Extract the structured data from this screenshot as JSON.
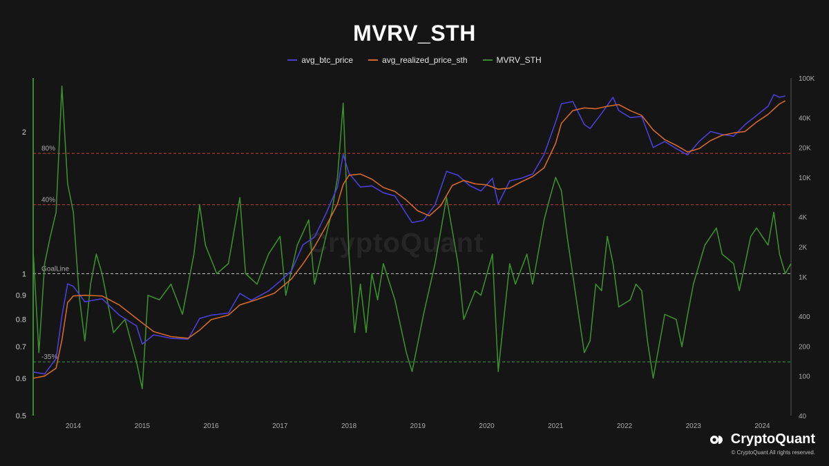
{
  "chart_data": {
    "type": "line",
    "title": "MVRV_STH",
    "legend_position": "top-center",
    "grid": false,
    "x_range": [
      "2013-06",
      "2024-06"
    ],
    "x_ticks": [
      "2014",
      "2015",
      "2016",
      "2017",
      "2018",
      "2019",
      "2020",
      "2021",
      "2022",
      "2023",
      "2024"
    ],
    "left_axis": {
      "scale": "log",
      "range": [
        0.5,
        2.6
      ],
      "ticks": [
        "0.5",
        "0.6",
        "0.7",
        "0.8",
        "0.9",
        "1",
        "2"
      ]
    },
    "right_axis": {
      "scale": "log",
      "range": [
        40,
        100000
      ],
      "ticks": [
        "40",
        "100",
        "200",
        "400",
        "1K",
        "2K",
        "4K",
        "10K",
        "20K",
        "40K",
        "100K"
      ]
    },
    "series": [
      {
        "name": "avg_btc_price",
        "color": "#4b3fd8",
        "axis": "right",
        "points": [
          [
            "2013-06",
            110
          ],
          [
            "2013-08",
            105
          ],
          [
            "2013-10",
            150
          ],
          [
            "2013-11",
            400
          ],
          [
            "2013-12",
            850
          ],
          [
            "2014-01",
            800
          ],
          [
            "2014-03",
            560
          ],
          [
            "2014-06",
            600
          ],
          [
            "2014-09",
            410
          ],
          [
            "2014-12",
            320
          ],
          [
            "2015-01",
            210
          ],
          [
            "2015-03",
            260
          ],
          [
            "2015-06",
            240
          ],
          [
            "2015-09",
            235
          ],
          [
            "2015-11",
            380
          ],
          [
            "2016-01",
            410
          ],
          [
            "2016-04",
            430
          ],
          [
            "2016-06",
            680
          ],
          [
            "2016-08",
            580
          ],
          [
            "2016-11",
            720
          ],
          [
            "2017-01",
            900
          ],
          [
            "2017-03",
            1150
          ],
          [
            "2017-05",
            2100
          ],
          [
            "2017-07",
            2500
          ],
          [
            "2017-09",
            4300
          ],
          [
            "2017-11",
            8000
          ],
          [
            "2017-12",
            17000
          ],
          [
            "2018-01",
            11000
          ],
          [
            "2018-03",
            8000
          ],
          [
            "2018-05",
            8200
          ],
          [
            "2018-07",
            7000
          ],
          [
            "2018-09",
            6500
          ],
          [
            "2018-11",
            4300
          ],
          [
            "2018-12",
            3500
          ],
          [
            "2019-02",
            3700
          ],
          [
            "2019-04",
            5300
          ],
          [
            "2019-06",
            11500
          ],
          [
            "2019-08",
            10500
          ],
          [
            "2019-10",
            8300
          ],
          [
            "2019-12",
            7300
          ],
          [
            "2020-02",
            9800
          ],
          [
            "2020-03",
            5400
          ],
          [
            "2020-05",
            9200
          ],
          [
            "2020-07",
            9800
          ],
          [
            "2020-09",
            10800
          ],
          [
            "2020-11",
            17000
          ],
          [
            "2021-01",
            36000
          ],
          [
            "2021-02",
            55000
          ],
          [
            "2021-04",
            58000
          ],
          [
            "2021-06",
            34000
          ],
          [
            "2021-07",
            31000
          ],
          [
            "2021-09",
            44000
          ],
          [
            "2021-11",
            64000
          ],
          [
            "2021-12",
            47000
          ],
          [
            "2022-02",
            40000
          ],
          [
            "2022-04",
            41000
          ],
          [
            "2022-06",
            20000
          ],
          [
            "2022-08",
            23000
          ],
          [
            "2022-10",
            19500
          ],
          [
            "2022-12",
            16800
          ],
          [
            "2023-02",
            23000
          ],
          [
            "2023-04",
            29000
          ],
          [
            "2023-06",
            27000
          ],
          [
            "2023-08",
            26000
          ],
          [
            "2023-10",
            34000
          ],
          [
            "2023-12",
            42000
          ],
          [
            "2024-02",
            52000
          ],
          [
            "2024-03",
            68000
          ],
          [
            "2024-04",
            64000
          ],
          [
            "2024-05",
            66000
          ]
        ]
      },
      {
        "name": "avg_realized_price_sth",
        "color": "#d4692a",
        "axis": "right",
        "points": [
          [
            "2013-06",
            95
          ],
          [
            "2013-08",
            100
          ],
          [
            "2013-10",
            120
          ],
          [
            "2013-11",
            230
          ],
          [
            "2013-12",
            550
          ],
          [
            "2014-01",
            640
          ],
          [
            "2014-03",
            650
          ],
          [
            "2014-06",
            640
          ],
          [
            "2014-09",
            520
          ],
          [
            "2014-12",
            380
          ],
          [
            "2015-03",
            280
          ],
          [
            "2015-06",
            250
          ],
          [
            "2015-09",
            240
          ],
          [
            "2015-11",
            290
          ],
          [
            "2016-01",
            370
          ],
          [
            "2016-04",
            410
          ],
          [
            "2016-06",
            520
          ],
          [
            "2016-09",
            590
          ],
          [
            "2016-12",
            680
          ],
          [
            "2017-03",
            950
          ],
          [
            "2017-05",
            1350
          ],
          [
            "2017-07",
            2000
          ],
          [
            "2017-09",
            3200
          ],
          [
            "2017-11",
            5400
          ],
          [
            "2017-12",
            8500
          ],
          [
            "2018-01",
            10500
          ],
          [
            "2018-03",
            10800
          ],
          [
            "2018-05",
            9600
          ],
          [
            "2018-07",
            7900
          ],
          [
            "2018-09",
            7200
          ],
          [
            "2018-11",
            5900
          ],
          [
            "2019-01",
            4600
          ],
          [
            "2019-03",
            4100
          ],
          [
            "2019-05",
            5200
          ],
          [
            "2019-07",
            8300
          ],
          [
            "2019-09",
            9300
          ],
          [
            "2019-11",
            8600
          ],
          [
            "2020-01",
            8400
          ],
          [
            "2020-03",
            7600
          ],
          [
            "2020-05",
            7800
          ],
          [
            "2020-07",
            9000
          ],
          [
            "2020-09",
            10200
          ],
          [
            "2020-11",
            12500
          ],
          [
            "2021-01",
            22000
          ],
          [
            "2021-02",
            35000
          ],
          [
            "2021-04",
            47000
          ],
          [
            "2021-06",
            50000
          ],
          [
            "2021-08",
            49000
          ],
          [
            "2021-10",
            52000
          ],
          [
            "2021-12",
            54000
          ],
          [
            "2022-02",
            47000
          ],
          [
            "2022-04",
            42000
          ],
          [
            "2022-06",
            30000
          ],
          [
            "2022-08",
            24000
          ],
          [
            "2022-10",
            21000
          ],
          [
            "2022-12",
            18000
          ],
          [
            "2023-02",
            19500
          ],
          [
            "2023-04",
            23500
          ],
          [
            "2023-06",
            26500
          ],
          [
            "2023-08",
            28000
          ],
          [
            "2023-10",
            29000
          ],
          [
            "2023-12",
            36000
          ],
          [
            "2024-02",
            43000
          ],
          [
            "2024-04",
            55000
          ],
          [
            "2024-05",
            59000
          ]
        ]
      },
      {
        "name": "MVRV_STH",
        "color": "#3a8f2c",
        "axis": "left",
        "points": [
          [
            "2013-06",
            1.12
          ],
          [
            "2013-07",
            0.68
          ],
          [
            "2013-08",
            1.05
          ],
          [
            "2013-09",
            1.2
          ],
          [
            "2013-10",
            1.35
          ],
          [
            "2013-11",
            2.5
          ],
          [
            "2013-12",
            1.55
          ],
          [
            "2014-01",
            1.35
          ],
          [
            "2014-02",
            0.9
          ],
          [
            "2014-03",
            0.72
          ],
          [
            "2014-04",
            0.95
          ],
          [
            "2014-05",
            1.1
          ],
          [
            "2014-06",
            1.0
          ],
          [
            "2014-08",
            0.75
          ],
          [
            "2014-10",
            0.8
          ],
          [
            "2014-12",
            0.65
          ],
          [
            "2015-01",
            0.57
          ],
          [
            "2015-02",
            0.9
          ],
          [
            "2015-04",
            0.88
          ],
          [
            "2015-06",
            0.95
          ],
          [
            "2015-08",
            0.82
          ],
          [
            "2015-10",
            1.1
          ],
          [
            "2015-11",
            1.4
          ],
          [
            "2015-12",
            1.15
          ],
          [
            "2016-02",
            1.0
          ],
          [
            "2016-04",
            1.05
          ],
          [
            "2016-06",
            1.45
          ],
          [
            "2016-07",
            1.0
          ],
          [
            "2016-09",
            0.95
          ],
          [
            "2016-11",
            1.1
          ],
          [
            "2017-01",
            1.2
          ],
          [
            "2017-02",
            0.9
          ],
          [
            "2017-04",
            1.15
          ],
          [
            "2017-06",
            1.3
          ],
          [
            "2017-07",
            0.95
          ],
          [
            "2017-09",
            1.2
          ],
          [
            "2017-10",
            1.35
          ],
          [
            "2017-11",
            1.6
          ],
          [
            "2017-12",
            2.3
          ],
          [
            "2018-01",
            1.1
          ],
          [
            "2018-02",
            0.75
          ],
          [
            "2018-03",
            0.95
          ],
          [
            "2018-04",
            0.75
          ],
          [
            "2018-05",
            1.0
          ],
          [
            "2018-06",
            0.88
          ],
          [
            "2018-07",
            1.05
          ],
          [
            "2018-09",
            0.88
          ],
          [
            "2018-11",
            0.68
          ],
          [
            "2018-12",
            0.62
          ],
          [
            "2019-02",
            0.82
          ],
          [
            "2019-04",
            1.05
          ],
          [
            "2019-06",
            1.45
          ],
          [
            "2019-08",
            1.05
          ],
          [
            "2019-09",
            0.8
          ],
          [
            "2019-11",
            0.92
          ],
          [
            "2019-12",
            0.9
          ],
          [
            "2020-02",
            1.1
          ],
          [
            "2020-03",
            0.62
          ],
          [
            "2020-05",
            1.05
          ],
          [
            "2020-06",
            0.95
          ],
          [
            "2020-08",
            1.1
          ],
          [
            "2020-09",
            0.95
          ],
          [
            "2020-11",
            1.3
          ],
          [
            "2020-12",
            1.45
          ],
          [
            "2021-01",
            1.6
          ],
          [
            "2021-02",
            1.5
          ],
          [
            "2021-03",
            1.2
          ],
          [
            "2021-05",
            0.82
          ],
          [
            "2021-06",
            0.68
          ],
          [
            "2021-07",
            0.72
          ],
          [
            "2021-08",
            0.95
          ],
          [
            "2021-09",
            0.92
          ],
          [
            "2021-10",
            1.2
          ],
          [
            "2021-11",
            1.05
          ],
          [
            "2021-12",
            0.85
          ],
          [
            "2022-02",
            0.88
          ],
          [
            "2022-03",
            0.95
          ],
          [
            "2022-04",
            0.92
          ],
          [
            "2022-05",
            0.72
          ],
          [
            "2022-06",
            0.6
          ],
          [
            "2022-08",
            0.82
          ],
          [
            "2022-10",
            0.8
          ],
          [
            "2022-11",
            0.7
          ],
          [
            "2022-12",
            0.82
          ],
          [
            "2023-01",
            0.95
          ],
          [
            "2023-03",
            1.15
          ],
          [
            "2023-05",
            1.25
          ],
          [
            "2023-06",
            1.1
          ],
          [
            "2023-08",
            1.05
          ],
          [
            "2023-09",
            0.92
          ],
          [
            "2023-10",
            1.05
          ],
          [
            "2023-11",
            1.2
          ],
          [
            "2023-12",
            1.25
          ],
          [
            "2024-02",
            1.15
          ],
          [
            "2024-03",
            1.35
          ],
          [
            "2024-04",
            1.1
          ],
          [
            "2024-05",
            1.0
          ],
          [
            "2024-06",
            1.05
          ]
        ]
      }
    ],
    "reference_lines": [
      {
        "label": "80%",
        "value": 1.8,
        "color": "#d03a3a",
        "axis": "left"
      },
      {
        "label": "40%",
        "value": 1.4,
        "color": "#d03a3a",
        "axis": "left"
      },
      {
        "label": "GoalLine",
        "value": 1.0,
        "color": "#c8c8c8",
        "axis": "left"
      },
      {
        "label": "-35%",
        "value": 0.65,
        "color": "#3aa33a",
        "axis": "left"
      }
    ]
  },
  "watermark_text": "CryptoQuant",
  "brand_name": "CryptoQuant",
  "copyright": "© CryptoQuant All rights reserved."
}
